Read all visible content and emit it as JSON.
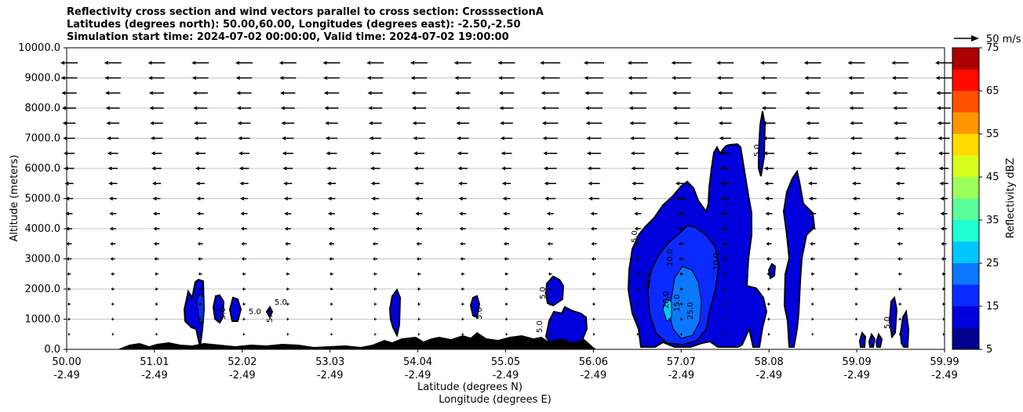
{
  "title_lines": [
    "Reflectivity cross section and wind vectors parallel to cross section: CrosssectionA",
    "Latitudes (degrees north): 50.00,60.00, Longitudes (degrees east): -2.50,-2.50",
    "Simulation start time: 2024-07-02 00:00:00, Valid time: 2024-07-02 19:00:00"
  ],
  "chart_data": {
    "type": "heatmap",
    "ylabel": "Altitude (meters)",
    "xlabel_primary": "Latitude (degrees N)",
    "xlabel_secondary": "Longitude (degrees E)",
    "ylim": [
      0,
      10000
    ],
    "y_ticks": [
      "0.0",
      "1000.0",
      "2000.0",
      "3000.0",
      "4000.0",
      "5000.0",
      "6000.0",
      "7000.0",
      "8000.0",
      "9000.0",
      "10000.0"
    ],
    "x_ticks": [
      {
        "lat": "50.00",
        "lon": "-2.49"
      },
      {
        "lat": "51.01",
        "lon": "-2.49"
      },
      {
        "lat": "52.02",
        "lon": "-2.49"
      },
      {
        "lat": "53.03",
        "lon": "-2.49"
      },
      {
        "lat": "54.04",
        "lon": "-2.49"
      },
      {
        "lat": "55.05",
        "lon": "-2.49"
      },
      {
        "lat": "56.06",
        "lon": "-2.49"
      },
      {
        "lat": "57.07",
        "lon": "-2.49"
      },
      {
        "lat": "58.08",
        "lon": "-2.49"
      },
      {
        "lat": "59.09",
        "lon": "-2.49"
      },
      {
        "lat": "59.99",
        "lon": "-2.49"
      }
    ],
    "grid": "horizontal",
    "colorbar": {
      "label": "Reflectivity dBZ",
      "ticks": [
        "5",
        "15",
        "25",
        "35",
        "45",
        "55",
        "65",
        "75"
      ],
      "range": [
        5,
        75
      ],
      "levels": [
        5,
        10,
        15,
        20,
        25,
        30,
        35,
        40,
        45,
        50,
        55,
        60,
        65,
        70,
        75
      ],
      "colors": [
        "#00008f",
        "#0000dd",
        "#0a2aff",
        "#0a78ff",
        "#00c8ff",
        "#1effd2",
        "#5aff9c",
        "#9cff5a",
        "#d8ff1e",
        "#ffdc00",
        "#ff9600",
        "#ff5000",
        "#ff0a00",
        "#aa0000"
      ]
    },
    "wind_reference": "50 m/s",
    "contour_labels": [
      "5.0",
      "5.0",
      "5.0",
      "5.0",
      "5.0",
      "5.0",
      "5.0",
      "5.0",
      "5.0",
      "5.0",
      "10.0",
      "10.0",
      "10.0",
      "15.0",
      "20.0",
      "25.0"
    ]
  }
}
